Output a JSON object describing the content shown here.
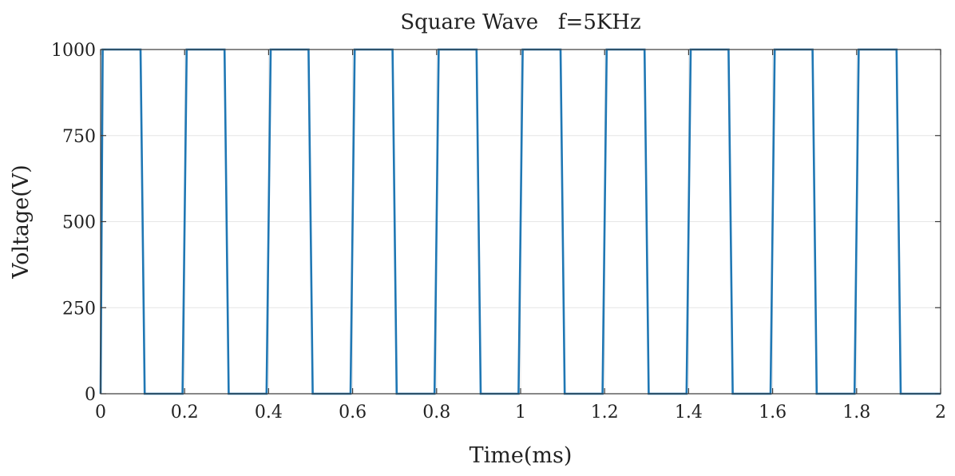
{
  "chart_data": {
    "type": "line",
    "title": "Square Wave   f=5KHz",
    "xlabel": "Time(ms)",
    "ylabel": "Voltage(V)",
    "xlim": [
      0,
      2
    ],
    "ylim": [
      0,
      1000
    ],
    "xticks": [
      0,
      0.2,
      0.4,
      0.6,
      0.8,
      1,
      1.2,
      1.4,
      1.6,
      1.8,
      2
    ],
    "xtick_labels": [
      "0",
      "0.2",
      "0.4",
      "0.6",
      "0.8",
      "1",
      "1.2",
      "1.4",
      "1.6",
      "1.8",
      "2"
    ],
    "yticks": [
      0,
      250,
      500,
      750,
      1000
    ],
    "ytick_labels": [
      "0",
      "250",
      "500",
      "750",
      "1000"
    ],
    "grid": true,
    "series": [
      {
        "color": "#1f77b4",
        "x": [
          0,
          0.005,
          0.095,
          0.105,
          0.195,
          0.205,
          0.295,
          0.305,
          0.395,
          0.405,
          0.495,
          0.505,
          0.595,
          0.605,
          0.695,
          0.705,
          0.795,
          0.805,
          0.895,
          0.905,
          0.995,
          1.005,
          1.095,
          1.105,
          1.195,
          1.205,
          1.295,
          1.305,
          1.395,
          1.405,
          1.495,
          1.505,
          1.595,
          1.605,
          1.695,
          1.705,
          1.795,
          1.805,
          1.895,
          1.905,
          2
        ],
        "y": [
          0,
          1000,
          1000,
          0,
          0,
          1000,
          1000,
          0,
          0,
          1000,
          1000,
          0,
          0,
          1000,
          1000,
          0,
          0,
          1000,
          1000,
          0,
          0,
          1000,
          1000,
          0,
          0,
          1000,
          1000,
          0,
          0,
          1000,
          1000,
          0,
          0,
          1000,
          1000,
          0,
          0,
          1000,
          1000,
          0,
          0
        ]
      }
    ]
  }
}
